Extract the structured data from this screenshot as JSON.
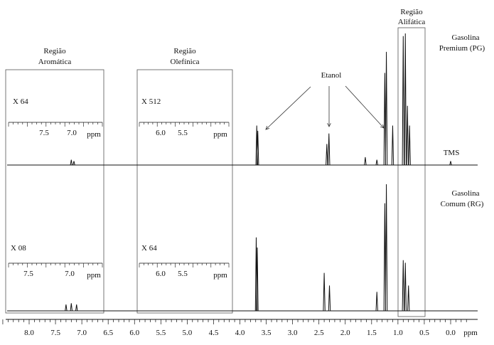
{
  "chart_data": {
    "type": "line",
    "x_axis": {
      "range_ppm": [
        8.5,
        -0.3
      ],
      "reversed": true,
      "tick_labels": [
        "8.0",
        "7.5",
        "7.0",
        "6.5",
        "6.0",
        "5.5",
        "5.0",
        "4.5",
        "4.0",
        "3.5",
        "3.0",
        "2.5",
        "2.0",
        "1.5",
        "1.0",
        "0.5",
        "0.0"
      ],
      "tick_values": [
        8.0,
        7.5,
        7.0,
        6.5,
        6.0,
        5.5,
        5.0,
        4.5,
        4.0,
        3.5,
        3.0,
        2.5,
        2.0,
        1.5,
        1.0,
        0.5,
        0.0
      ],
      "unit": "ppm"
    },
    "series": [
      {
        "name": "Gasolina Premium (PG)",
        "peaks": [
          {
            "ppm": 7.2,
            "height": 0.04
          },
          {
            "ppm": 7.15,
            "height": 0.03
          },
          {
            "ppm": 3.68,
            "height": 0.3
          },
          {
            "ppm": 3.66,
            "height": 0.26
          },
          {
            "ppm": 2.35,
            "height": 0.16
          },
          {
            "ppm": 2.31,
            "height": 0.24
          },
          {
            "ppm": 1.62,
            "height": 0.06
          },
          {
            "ppm": 1.4,
            "height": 0.04
          },
          {
            "ppm": 1.25,
            "height": 0.7
          },
          {
            "ppm": 1.22,
            "height": 0.86
          },
          {
            "ppm": 1.1,
            "height": 0.3
          },
          {
            "ppm": 0.9,
            "height": 0.98
          },
          {
            "ppm": 0.86,
            "height": 1.0
          },
          {
            "ppm": 0.82,
            "height": 0.45
          },
          {
            "ppm": 0.78,
            "height": 0.3
          },
          {
            "ppm": 0.0,
            "height": 0.03
          }
        ]
      },
      {
        "name": "Gasolina Comum (RG)",
        "peaks": [
          {
            "ppm": 7.3,
            "height": 0.05
          },
          {
            "ppm": 7.2,
            "height": 0.06
          },
          {
            "ppm": 7.1,
            "height": 0.05
          },
          {
            "ppm": 3.69,
            "height": 0.58
          },
          {
            "ppm": 3.67,
            "height": 0.5
          },
          {
            "ppm": 2.4,
            "height": 0.3
          },
          {
            "ppm": 2.3,
            "height": 0.2
          },
          {
            "ppm": 1.4,
            "height": 0.15
          },
          {
            "ppm": 1.25,
            "height": 0.85
          },
          {
            "ppm": 1.22,
            "height": 1.0
          },
          {
            "ppm": 0.9,
            "height": 0.4
          },
          {
            "ppm": 0.86,
            "height": 0.38
          },
          {
            "ppm": 0.8,
            "height": 0.2
          }
        ]
      }
    ],
    "insets": [
      {
        "name": "PG aromatic",
        "multiplier": "X 64",
        "tick_labels": [
          "7.5",
          "7.0"
        ],
        "unit": "ppm"
      },
      {
        "name": "PG olefinic",
        "multiplier": "X 512",
        "tick_labels": [
          "6.0",
          "5.5"
        ],
        "unit": "ppm"
      },
      {
        "name": "RG aromatic",
        "multiplier": "X 08",
        "tick_labels": [
          "7.5",
          "7.0"
        ],
        "unit": "ppm"
      },
      {
        "name": "RG olefinic",
        "multiplier": "X 64",
        "tick_labels": [
          "6.0",
          "5.5"
        ],
        "unit": "ppm"
      }
    ]
  },
  "labels": {
    "aromatic_region": [
      "Região",
      "Aromática"
    ],
    "olefinic_region": [
      "Região",
      "Olefínica"
    ],
    "aliphatic_region": [
      "Região",
      "Alifática"
    ],
    "ethanol": "Etanol",
    "tms": "TMS",
    "premium": [
      "Gasolina",
      "Premium  (PG)"
    ],
    "comum": [
      "Gasolina",
      "Comum  (RG)"
    ],
    "axis_unit": "ppm"
  }
}
